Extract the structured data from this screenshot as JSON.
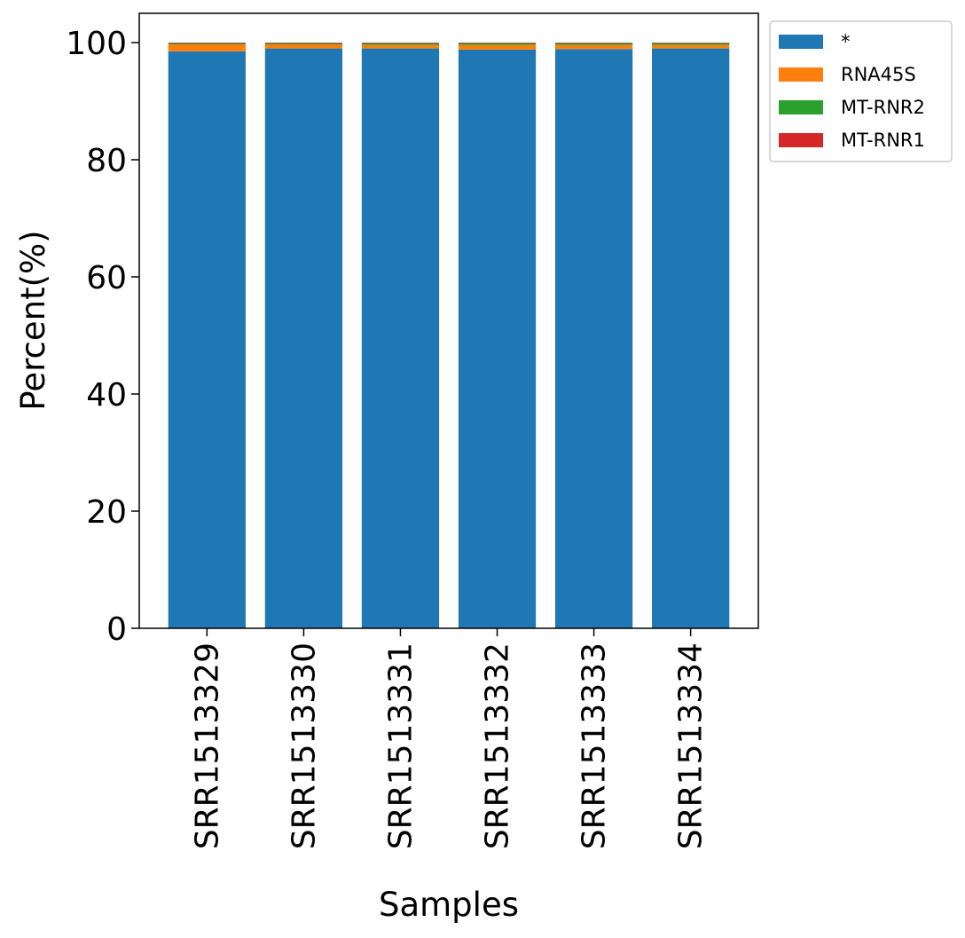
{
  "chart_data": {
    "type": "bar",
    "stacked": true,
    "categories": [
      "SRR1513329",
      "SRR1513330",
      "SRR1513331",
      "SRR1513332",
      "SRR1513333",
      "SRR1513334"
    ],
    "series": [
      {
        "name": "*",
        "color": "#1f77b4",
        "values": [
          98.5,
          99.0,
          99.0,
          98.8,
          98.9,
          99.0
        ]
      },
      {
        "name": "RNA45S",
        "color": "#ff7f0e",
        "values": [
          1.2,
          0.7,
          0.6,
          0.8,
          0.7,
          0.6
        ]
      },
      {
        "name": "MT-RNR2",
        "color": "#2ca02c",
        "values": [
          0.2,
          0.2,
          0.3,
          0.3,
          0.3,
          0.3
        ]
      },
      {
        "name": "MT-RNR1",
        "color": "#d62728",
        "values": [
          0.1,
          0.1,
          0.1,
          0.1,
          0.1,
          0.1
        ]
      }
    ],
    "xlabel": "Samples",
    "ylabel": "Percent(%)",
    "ylim": [
      0,
      105
    ],
    "yticks": [
      0,
      20,
      40,
      60,
      80,
      100
    ],
    "grid": false,
    "legend_position": "outside-top-right"
  }
}
